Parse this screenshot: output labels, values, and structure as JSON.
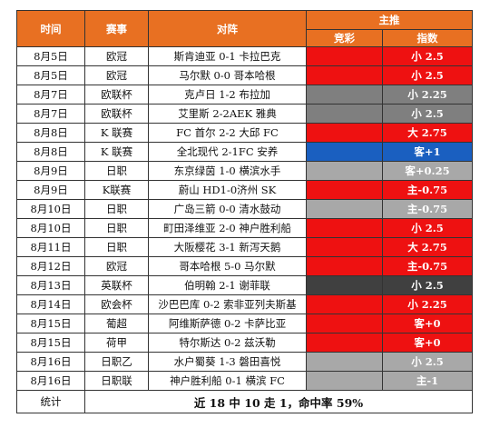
{
  "headers": {
    "time": "时间",
    "league": "赛事",
    "match": "对阵",
    "tip_group": "主推",
    "jingcai": "竞彩",
    "index": "指数"
  },
  "colors": {
    "header_bg": "#e87022",
    "red": "#ee1111",
    "gray": "#7f7f7f",
    "blue": "#1a5fc0",
    "light_gray": "#a8a8a8",
    "dark": "#404040"
  },
  "rows": [
    {
      "date": "8月5日",
      "league": "欧冠",
      "match": "斯肯迪亚 0-1 卡拉巴克",
      "jc_color": "red",
      "tip": "小 2.5",
      "tip_color": "red"
    },
    {
      "date": "8月5日",
      "league": "欧冠",
      "match": "马尔默 0-0 哥本哈根",
      "jc_color": "red",
      "tip": "小 2.5",
      "tip_color": "red"
    },
    {
      "date": "8月7日",
      "league": "欧联杯",
      "match": "克卢日 1-2 布拉加",
      "jc_color": "gray",
      "tip": "小 2.25",
      "tip_color": "gray"
    },
    {
      "date": "8月7日",
      "league": "欧联杯",
      "match": "艾里斯 2-2AEK 雅典",
      "jc_color": "gray",
      "tip": "小 2.5",
      "tip_color": "gray"
    },
    {
      "date": "8月8日",
      "league": "K 联赛",
      "match": "FC 首尔 2-2 大邱 FC",
      "jc_color": "red",
      "tip": "大 2.75",
      "tip_color": "red"
    },
    {
      "date": "8月8日",
      "league": "K 联赛",
      "match": "全北现代 2-1FC 安养",
      "jc_color": "blue",
      "tip": "客+1",
      "tip_color": "blue"
    },
    {
      "date": "8月9日",
      "league": "日职",
      "match": "东京绿茵 1-0 横滨水手",
      "jc_color": "light_gray",
      "tip": "客+0.25",
      "tip_color": "light_gray"
    },
    {
      "date": "8月9日",
      "league": "K联赛",
      "match": "蔚山 HD1-0济州 SK",
      "jc_color": "red",
      "tip": "主-0.75",
      "tip_color": "red"
    },
    {
      "date": "8月10日",
      "league": "日职",
      "match": "广岛三箭 0-0 清水鼓动",
      "jc_color": "light_gray",
      "tip": "主-0.75",
      "tip_color": "light_gray"
    },
    {
      "date": "8月10日",
      "league": "日职",
      "match": "町田泽维亚 2-0 神户胜利船",
      "jc_color": "red",
      "tip": "小 2.5",
      "tip_color": "red"
    },
    {
      "date": "8月11日",
      "league": "日职",
      "match": "大阪樱花 3-1 新泻天鹅",
      "jc_color": "red",
      "tip": "大 2.75",
      "tip_color": "red"
    },
    {
      "date": "8月12日",
      "league": "欧冠",
      "match": "哥本哈根 5-0 马尔默",
      "jc_color": "red",
      "tip": "主-0.75",
      "tip_color": "red"
    },
    {
      "date": "8月13日",
      "league": "英联杯",
      "match": "伯明翰 2-1 谢菲联",
      "jc_color": "dark",
      "tip": "小 2.5",
      "tip_color": "dark"
    },
    {
      "date": "8月14日",
      "league": "欧会杯",
      "match": "沙巴巴库 0-2 索非亚列夫斯基",
      "jc_color": "red",
      "tip": "小 2.25",
      "tip_color": "red"
    },
    {
      "date": "8月15日",
      "league": "葡超",
      "match": "阿维斯萨德 0-2 卡萨比亚",
      "jc_color": "red",
      "tip": "客+0",
      "tip_color": "red"
    },
    {
      "date": "8月15日",
      "league": "荷甲",
      "match": "特尔斯达 0-2 兹沃勒",
      "jc_color": "red",
      "tip": "客+0",
      "tip_color": "red"
    },
    {
      "date": "8月16日",
      "league": "日职乙",
      "match": "水户蜀葵 1-3 磐田喜悦",
      "jc_color": "light_gray",
      "tip": "小 2.5",
      "tip_color": "light_gray"
    },
    {
      "date": "8月16日",
      "league": "日职联",
      "match": "神户胜利船 0-1 横滨 FC",
      "jc_color": "light_gray",
      "tip": "主-1",
      "tip_color": "light_gray"
    }
  ],
  "summary": {
    "label": "统计",
    "text": "近 18 中 10 走 1，命中率 59%"
  }
}
